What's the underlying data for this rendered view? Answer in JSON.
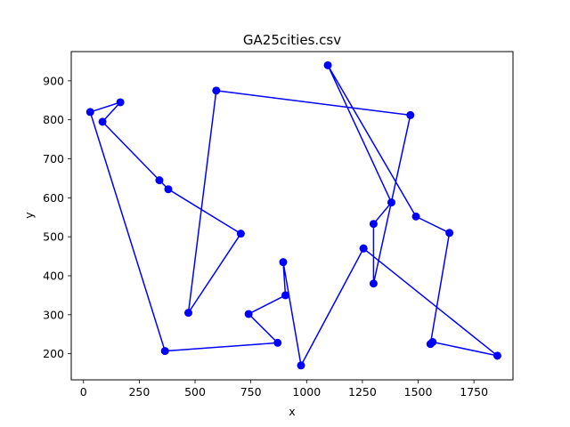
{
  "chart_data": {
    "type": "line",
    "title": "GA25cities.csv",
    "xlabel": "x",
    "ylabel": "y",
    "xlim": [
      -55,
      1925
    ],
    "ylim": [
      133,
      975
    ],
    "xticks": [
      0,
      250,
      500,
      750,
      1000,
      1250,
      1500,
      1750
    ],
    "yticks": [
      200,
      300,
      400,
      500,
      600,
      700,
      800,
      900
    ],
    "grid": false,
    "legend": "none",
    "series": [
      {
        "color": "#0000ff",
        "marker": "circle",
        "x": [
          1255,
          1855,
          1565,
          1555,
          1640,
          1490,
          1095,
          1380,
          1300,
          1300,
          1465,
          595,
          470,
          705,
          380,
          340,
          85,
          165,
          30,
          365,
          870,
          740,
          905,
          895,
          975,
          1255
        ],
        "y": [
          470,
          195,
          230,
          225,
          510,
          552,
          940,
          588,
          533,
          380,
          812,
          875,
          305,
          508,
          622,
          645,
          795,
          845,
          820,
          207,
          228,
          302,
          350,
          435,
          170,
          470
        ]
      }
    ]
  }
}
